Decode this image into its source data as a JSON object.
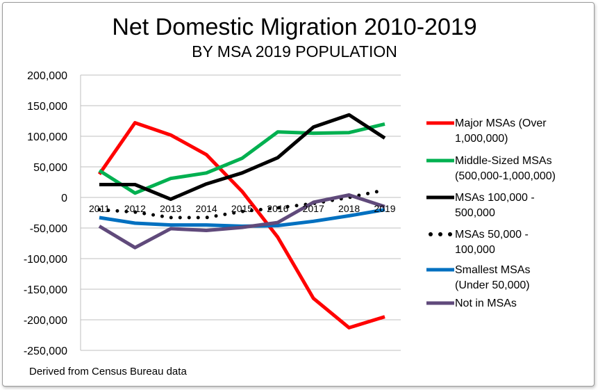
{
  "chart_data": {
    "type": "line",
    "title": "Net Domestic Migration 2010-2019",
    "subtitle": "BY MSA 2019 POPULATION",
    "xlabel": "",
    "ylabel": "",
    "categories": [
      "2011",
      "2012",
      "2013",
      "2014",
      "2015",
      "2016",
      "2017",
      "2018",
      "2019"
    ],
    "ylim": [
      -250000,
      200000
    ],
    "yticks": [
      200000,
      150000,
      100000,
      50000,
      0,
      -50000,
      -100000,
      -150000,
      -200000,
      -250000
    ],
    "ytick_labels": [
      "200,000",
      "150,000",
      "100,000",
      "50,000",
      "0",
      "-50,000",
      "-100,000",
      "-150,000",
      "-200,000",
      "-250,000"
    ],
    "grid": true,
    "legend_position": "right",
    "series": [
      {
        "name_lines": [
          "Major MSAs (Over",
          "1,000,000)"
        ],
        "color": "#ff0000",
        "style": "solid",
        "values": [
          38000,
          122000,
          102000,
          70000,
          10000,
          -65000,
          -165000,
          -213000,
          -195000
        ]
      },
      {
        "name_lines": [
          "Middle-Sized MSAs",
          "(500,000-1,000,000)"
        ],
        "color": "#00b050",
        "style": "solid",
        "values": [
          44000,
          7000,
          31000,
          40000,
          64000,
          107000,
          105000,
          106000,
          120000
        ]
      },
      {
        "name_lines": [
          "MSAs 100,000 -",
          "500,000"
        ],
        "color": "#000000",
        "style": "solid",
        "values": [
          21000,
          21000,
          -3000,
          22000,
          40000,
          65000,
          115000,
          135000,
          97000
        ]
      },
      {
        "name_lines": [
          "MSAs 50,000 -",
          "100,000"
        ],
        "color": "#000000",
        "style": "dotted",
        "values": [
          -20000,
          -24000,
          -33000,
          -33000,
          -23000,
          -17000,
          -10000,
          0,
          12000
        ]
      },
      {
        "name_lines": [
          "Smallest MSAs",
          "(Under 50,000)"
        ],
        "color": "#0070c0",
        "style": "solid",
        "values": [
          -33000,
          -42000,
          -45000,
          -45000,
          -47000,
          -46000,
          -39000,
          -30000,
          -20000
        ]
      },
      {
        "name_lines": [
          "Not in MSAs"
        ],
        "color": "#604a7b",
        "style": "solid",
        "values": [
          -47000,
          -82000,
          -51000,
          -54000,
          -49000,
          -41000,
          -8000,
          4000,
          -15000
        ]
      }
    ],
    "source_note": "Derived from Census Bureau data"
  }
}
